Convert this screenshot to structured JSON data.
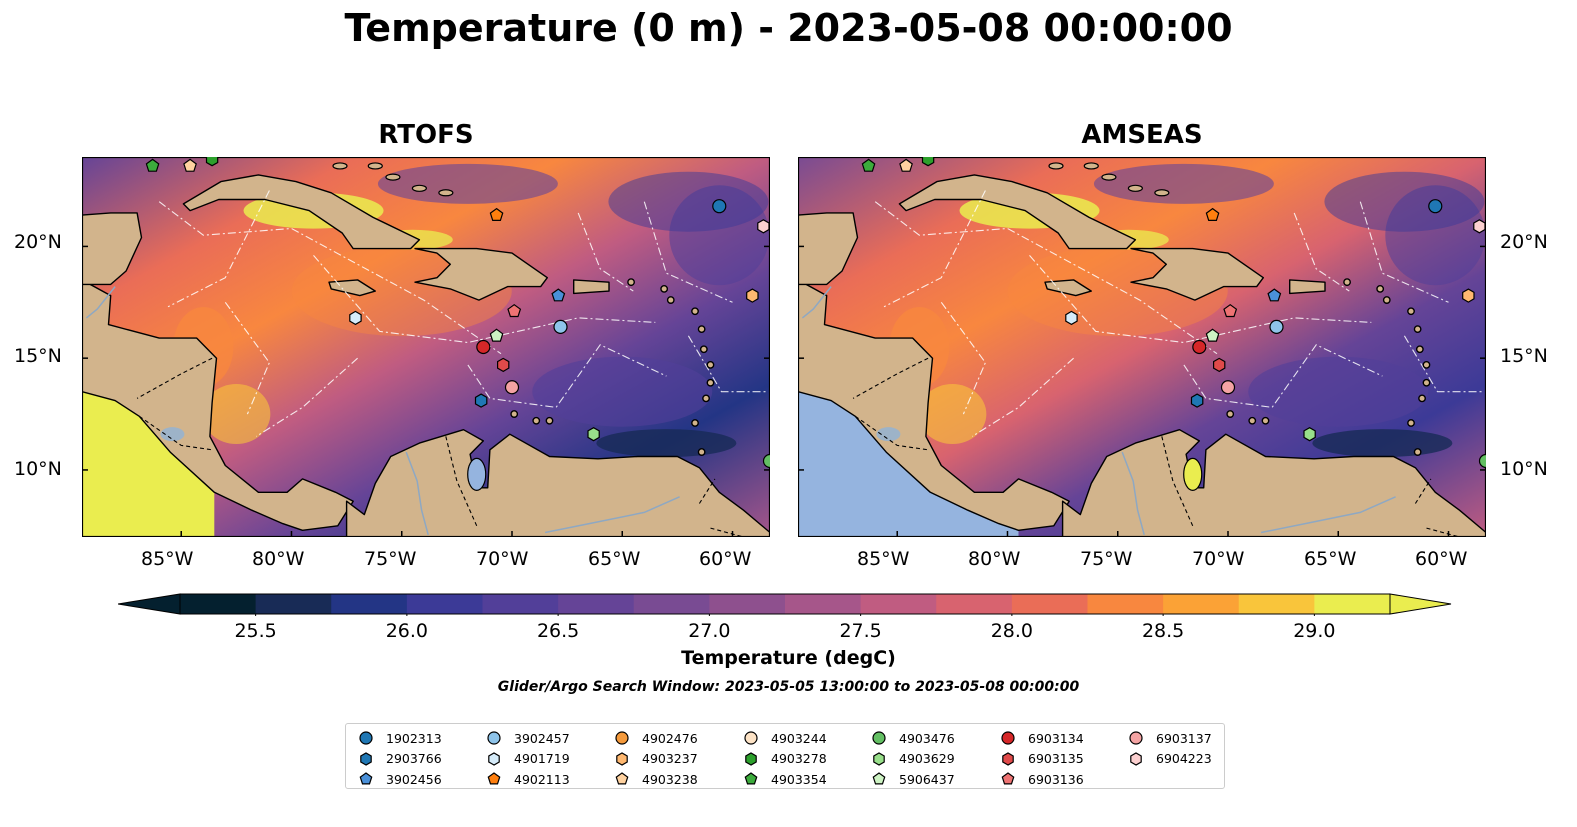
{
  "title": "Temperature (0 m) - 2023-05-08 00:00:00",
  "panels": [
    {
      "title": "RTOFS"
    },
    {
      "title": "AMSEAS"
    }
  ],
  "lat_labels": [
    "20°N",
    "15°N",
    "10°N"
  ],
  "lon_labels": [
    "85°W",
    "80°W",
    "75°W",
    "70°W",
    "65°W",
    "60°W"
  ],
  "colorbar": {
    "label": "Temperature (degC)",
    "ticks": [
      "25.5",
      "26.0",
      "26.5",
      "27.0",
      "27.5",
      "28.0",
      "28.5",
      "29.0"
    ],
    "colors": [
      "#04202f",
      "#182b56",
      "#233585",
      "#3c3a97",
      "#523f99",
      "#654497",
      "#794b93",
      "#8e508e",
      "#a6568a",
      "#c05c81",
      "#d8636f",
      "#ea6d57",
      "#f8873f",
      "#fba236",
      "#f9c53b",
      "#eaed4f"
    ]
  },
  "search_window": "Glider/Argo Search Window: 2023-05-05 13:00:00 to 2023-05-08 00:00:00",
  "legend": {
    "columns": [
      [
        {
          "id": "1902313",
          "marker": "circle",
          "color": "#1f77b4"
        },
        {
          "id": "2903766",
          "marker": "hexagon",
          "color": "#1f77b4"
        },
        {
          "id": "3902456",
          "marker": "pentagon",
          "color": "#4a90d9"
        }
      ],
      [
        {
          "id": "3902457",
          "marker": "circle",
          "color": "#8ec4ea"
        },
        {
          "id": "4901719",
          "marker": "hexagon",
          "color": "#d6ecfa"
        },
        {
          "id": "4902113",
          "marker": "pentagon",
          "color": "#ff7f0e"
        }
      ],
      [
        {
          "id": "4902476",
          "marker": "circle",
          "color": "#f59a3c"
        },
        {
          "id": "4903237",
          "marker": "hexagon",
          "color": "#ffb870"
        },
        {
          "id": "4903238",
          "marker": "pentagon",
          "color": "#ffd2a0"
        }
      ],
      [
        {
          "id": "4903244",
          "marker": "circle",
          "color": "#fde3c6"
        },
        {
          "id": "4903278",
          "marker": "hexagon",
          "color": "#2ca02c"
        },
        {
          "id": "4903354",
          "marker": "pentagon",
          "color": "#3cab3c"
        }
      ],
      [
        {
          "id": "4903476",
          "marker": "circle",
          "color": "#63bf63"
        },
        {
          "id": "4903629",
          "marker": "hexagon",
          "color": "#98df8a"
        },
        {
          "id": "5906437",
          "marker": "pentagon",
          "color": "#cdf3c3"
        }
      ],
      [
        {
          "id": "6903134",
          "marker": "circle",
          "color": "#d62728"
        },
        {
          "id": "6903135",
          "marker": "hexagon",
          "color": "#e04a4a"
        },
        {
          "id": "6903136",
          "marker": "pentagon",
          "color": "#ee7373"
        }
      ],
      [
        {
          "id": "6903137",
          "marker": "circle",
          "color": "#f4a3a3"
        },
        {
          "id": "6904223",
          "marker": "hexagon",
          "color": "#fcd0d0"
        }
      ]
    ]
  },
  "floats": [
    {
      "id": "1902313",
      "lon": -60.6,
      "lat": 21.8
    },
    {
      "id": "6904223",
      "lon": -58.6,
      "lat": 20.9
    },
    {
      "id": "4902113",
      "lon": -70.7,
      "lat": 21.4
    },
    {
      "id": "3902456",
      "lon": -67.9,
      "lat": 17.8
    },
    {
      "id": "6903136",
      "lon": -69.9,
      "lat": 17.1
    },
    {
      "id": "4903237",
      "lon": -59.1,
      "lat": 17.8
    },
    {
      "id": "4901719",
      "lon": -77.1,
      "lat": 16.8
    },
    {
      "id": "3902457",
      "lon": -67.8,
      "lat": 16.4
    },
    {
      "id": "5906437",
      "lon": -70.7,
      "lat": 16.0
    },
    {
      "id": "6903134",
      "lon": -71.3,
      "lat": 15.5
    },
    {
      "id": "6903135",
      "lon": -70.4,
      "lat": 14.7
    },
    {
      "id": "6903137",
      "lon": -70.0,
      "lat": 13.7
    },
    {
      "id": "2903766",
      "lon": -71.4,
      "lat": 13.1
    },
    {
      "id": "4903629",
      "lon": -66.3,
      "lat": 11.6
    },
    {
      "id": "4903476",
      "lon": -58.3,
      "lat": 10.4
    },
    {
      "id": "4903354",
      "lon": -86.3,
      "lat": 23.6
    },
    {
      "id": "4903238",
      "lon": -84.6,
      "lat": 23.6
    },
    {
      "id": "4903278",
      "lon": -83.6,
      "lat": 23.9
    }
  ]
}
